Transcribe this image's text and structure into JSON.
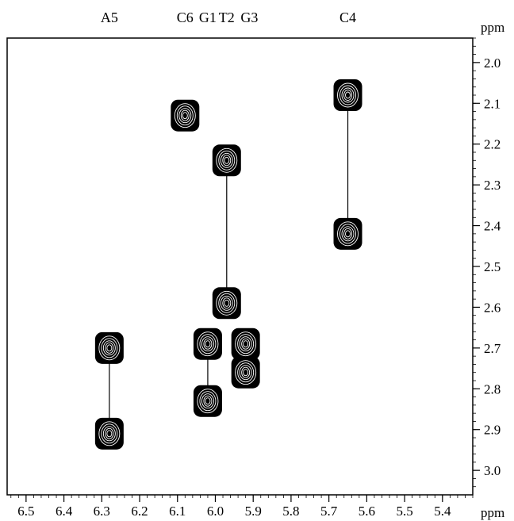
{
  "chart_data": {
    "type": "scatter",
    "plot_kind": "2D NMR contour spectrum",
    "x_unit": "ppm",
    "y_unit": "ppm",
    "xlim": [
      6.55,
      5.32
    ],
    "ylim": [
      1.94,
      3.06
    ],
    "x_reversed": true,
    "y_downward_increasing": true,
    "x_ticks": [
      6.5,
      6.4,
      6.3,
      6.2,
      6.1,
      6.0,
      5.9,
      5.8,
      5.7,
      5.6,
      5.5,
      5.4
    ],
    "x_tick_labels": [
      "6.5",
      "6.4",
      "6.3",
      "6.2",
      "6.1",
      "6.0",
      "5.9",
      "5.8",
      "5.7",
      "5.6",
      "5.5",
      "5.4"
    ],
    "y_ticks": [
      2.0,
      2.1,
      2.2,
      2.3,
      2.4,
      2.5,
      2.6,
      2.7,
      2.8,
      2.9,
      3.0
    ],
    "y_tick_labels": [
      "2.0",
      "2.1",
      "2.2",
      "2.3",
      "2.4",
      "2.5",
      "2.6",
      "2.7",
      "2.8",
      "2.9",
      "3.0"
    ],
    "residue_labels": [
      {
        "label": "A5",
        "x": 6.28
      },
      {
        "label": "C6",
        "x": 6.08
      },
      {
        "label": "G1",
        "x": 6.02
      },
      {
        "label": "T2",
        "x": 5.97
      },
      {
        "label": "G3",
        "x": 5.91
      },
      {
        "label": "C4",
        "x": 5.65
      }
    ],
    "peaks": [
      {
        "x": 6.28,
        "y": 2.7
      },
      {
        "x": 6.28,
        "y": 2.91
      },
      {
        "x": 6.08,
        "y": 2.13
      },
      {
        "x": 6.02,
        "y": 2.69
      },
      {
        "x": 6.02,
        "y": 2.83
      },
      {
        "x": 5.97,
        "y": 2.24
      },
      {
        "x": 5.97,
        "y": 2.59
      },
      {
        "x": 5.92,
        "y": 2.69
      },
      {
        "x": 5.92,
        "y": 2.76
      },
      {
        "x": 5.65,
        "y": 2.08
      },
      {
        "x": 5.65,
        "y": 2.42
      }
    ],
    "connectors": [
      {
        "x": 6.28,
        "y1": 2.7,
        "y2": 2.91
      },
      {
        "x": 6.02,
        "y1": 2.69,
        "y2": 2.83
      },
      {
        "x": 5.97,
        "y1": 2.24,
        "y2": 2.59
      },
      {
        "x": 5.65,
        "y1": 2.08,
        "y2": 2.42
      }
    ],
    "xlabel": "ppm",
    "ylabel": "ppm",
    "grid": false,
    "colors": {
      "peaks": "#000000",
      "axes": "#000000",
      "background": "#ffffff"
    }
  }
}
